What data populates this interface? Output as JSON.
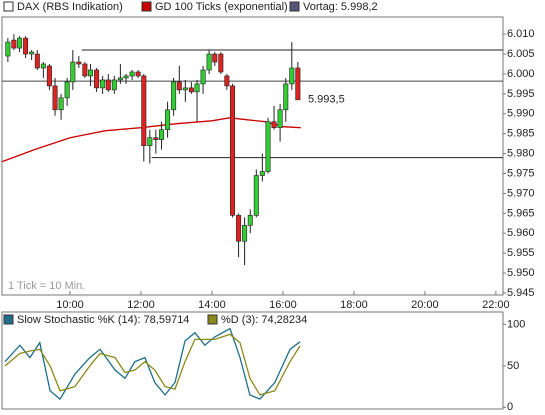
{
  "chart_data": [
    {
      "type": "candlestick",
      "name": "DAX (RBS Indikation)",
      "color": "#ffffff",
      "up_color": "#33cc33",
      "down_color": "#dd2222",
      "x": [
        8.25,
        8.42,
        8.58,
        8.75,
        8.92,
        9.08,
        9.25,
        9.42,
        9.58,
        9.75,
        9.92,
        10.08,
        10.25,
        10.42,
        10.58,
        10.75,
        10.92,
        11.08,
        11.25,
        11.42,
        11.58,
        11.75,
        11.92,
        12.08,
        12.25,
        12.42,
        12.58,
        12.75,
        12.92,
        13.08,
        13.25,
        13.42,
        13.58,
        13.75,
        13.92,
        14.08,
        14.25,
        14.42,
        14.58,
        14.75,
        14.92,
        15.08,
        15.25,
        15.42,
        15.58,
        15.75,
        15.92,
        16.08,
        16.25,
        16.42
      ],
      "open": [
        6.0045,
        6.0085,
        6.0065,
        6.009,
        6.005,
        6.005,
        6.0015,
        6.002,
        5.997,
        5.991,
        5.994,
        5.998,
        6.003,
        6.0025,
        5.9995,
        6.001,
        5.9965,
        5.9985,
        5.996,
        5.9985,
        5.999,
        5.9995,
        6.0005,
        5.9995,
        5.982,
        5.984,
        5.9835,
        5.986,
        5.991,
        5.998,
        5.996,
        5.9965,
        5.9955,
        5.9975,
        6.001,
        6.005,
        6.005,
        5.9995,
        5.997,
        5.9645,
        5.958,
        5.962,
        5.9645,
        5.9745,
        5.9755,
        5.988,
        5.9865,
        5.991,
        5.9975,
        6.0015
      ],
      "high": [
        6.009,
        6.01,
        6.0095,
        6.0095,
        6.006,
        6.006,
        6.003,
        6.0025,
        5.999,
        5.995,
        5.999,
        6.006,
        6.0045,
        6.003,
        6.0025,
        6.0015,
        5.9995,
        6.0,
        5.9995,
        6.0025,
        6.0,
        6.001,
        6.001,
        6.0,
        5.986,
        5.986,
        5.988,
        5.993,
        5.999,
        6.002,
        5.9985,
        5.998,
        5.9985,
        6.002,
        6.006,
        6.0055,
        6.0055,
        6.0,
        5.9975,
        5.965,
        5.964,
        5.966,
        5.976,
        5.98,
        5.989,
        5.992,
        5.9925,
        5.999,
        6.008,
        6.003
      ],
      "low": [
        6.003,
        6.006,
        6.0055,
        6.004,
        6.0035,
        6.001,
        5.999,
        5.996,
        5.9895,
        5.9885,
        5.992,
        5.996,
        6.0015,
        5.999,
        5.997,
        5.9955,
        5.995,
        5.9955,
        5.995,
        5.9975,
        5.9975,
        5.9985,
        5.999,
        5.978,
        5.9775,
        5.98,
        5.981,
        5.984,
        5.9895,
        5.995,
        5.993,
        5.995,
        5.988,
        5.995,
        6.0,
        6.002,
        6.0,
        5.996,
        5.964,
        5.954,
        5.952,
        5.96,
        5.964,
        5.973,
        5.975,
        5.986,
        5.983,
        5.988,
        5.996,
        5.9935
      ],
      "close": [
        6.008,
        6.0065,
        6.009,
        6.005,
        6.0055,
        6.0015,
        6.0025,
        5.997,
        5.991,
        5.994,
        5.998,
        6.003,
        6.0025,
        5.9995,
        6.001,
        5.9965,
        5.9985,
        5.996,
        5.9985,
        5.999,
        5.9995,
        6.0005,
        5.9995,
        5.982,
        5.984,
        5.9835,
        5.986,
        5.991,
        5.998,
        5.996,
        5.9965,
        5.9955,
        5.9975,
        6.001,
        6.005,
        6.003,
        6.0005,
        5.997,
        5.9645,
        5.958,
        5.962,
        5.9645,
        5.9745,
        5.9755,
        5.988,
        5.9865,
        5.991,
        5.9975,
        6.0015,
        5.9935
      ],
      "series": [
        {
          "name": "GD 100 Ticks (exponential)",
          "color": "#cc0000",
          "x": [
            8.09,
            9,
            10,
            11,
            12,
            13,
            14,
            14.5,
            15,
            15.5,
            16,
            16.5
          ],
          "values": [
            5.978,
            5.981,
            5.984,
            5.98575,
            5.9865,
            5.9875,
            5.98825,
            5.989,
            5.9885,
            5.988,
            5.98675,
            5.9865
          ]
        }
      ],
      "reference": {
        "label": "Vortag: 5.998,2",
        "value": 5.9982,
        "color": "#555577"
      },
      "levels": [
        {
          "value": 6.006,
          "from": 10.33
        },
        {
          "value": 5.979,
          "from": 12.3
        }
      ],
      "last_label": "5.993,5",
      "last_value": 5.9935,
      "note": "1 Tick = 10 Min.",
      "xlim": [
        8.085,
        22.2
      ],
      "xticks": [
        {
          "value": 10,
          "label": "10:00"
        },
        {
          "value": 12,
          "label": "12:00"
        },
        {
          "value": 14,
          "label": "14:00"
        },
        {
          "value": 16,
          "label": "16:00"
        },
        {
          "value": 18,
          "label": "18:00"
        },
        {
          "value": 20,
          "label": "20:00"
        },
        {
          "value": 22,
          "label": "22:00"
        }
      ],
      "ylim": [
        5.9445,
        6.0143
      ],
      "yticks": [
        {
          "value": 5.945,
          "label": "5.945"
        },
        {
          "value": 5.95,
          "label": "5.950"
        },
        {
          "value": 5.955,
          "label": "5.955"
        },
        {
          "value": 5.96,
          "label": "5.960"
        },
        {
          "value": 5.965,
          "label": "5.965"
        },
        {
          "value": 5.97,
          "label": "5.970"
        },
        {
          "value": 5.975,
          "label": "5.975"
        },
        {
          "value": 5.98,
          "label": "5.980"
        },
        {
          "value": 5.985,
          "label": "5.985"
        },
        {
          "value": 5.99,
          "label": "5.990"
        },
        {
          "value": 5.995,
          "label": "5.995"
        },
        {
          "value": 6.0,
          "label": "6.000"
        },
        {
          "value": 6.005,
          "label": "6.005"
        },
        {
          "value": 6.01,
          "label": "6.010"
        }
      ]
    },
    {
      "type": "line",
      "x": [
        8.17,
        8.59,
        8.87,
        9.15,
        9.44,
        9.72,
        10.14,
        10.56,
        10.85,
        11.27,
        11.55,
        11.83,
        12.11,
        12.39,
        12.68,
        12.96,
        13.24,
        13.52,
        13.8,
        14.08,
        14.51,
        14.79,
        15.07,
        15.35,
        15.77,
        16.2,
        16.48
      ],
      "series": [
        {
          "name": "Slow Stochastic %K (14): 78,59714",
          "color": "#1f6f8b",
          "values": [
            55,
            75,
            60,
            78,
            20,
            10,
            40,
            60,
            70,
            45,
            35,
            55,
            60,
            30,
            15,
            30,
            80,
            90,
            75,
            85,
            95,
            60,
            15,
            10,
            30,
            70,
            79
          ]
        },
        {
          "name": "%D (3): 74,28234",
          "color": "#8a8a1a",
          "values": [
            50,
            65,
            68,
            70,
            50,
            20,
            25,
            50,
            65,
            60,
            42,
            45,
            55,
            45,
            25,
            22,
            55,
            82,
            82,
            82,
            88,
            78,
            35,
            15,
            20,
            55,
            74
          ]
        }
      ],
      "xlim": [
        8.085,
        22.2
      ],
      "ylim": [
        -2,
        115
      ],
      "yticks": [
        0,
        50,
        100
      ]
    }
  ]
}
